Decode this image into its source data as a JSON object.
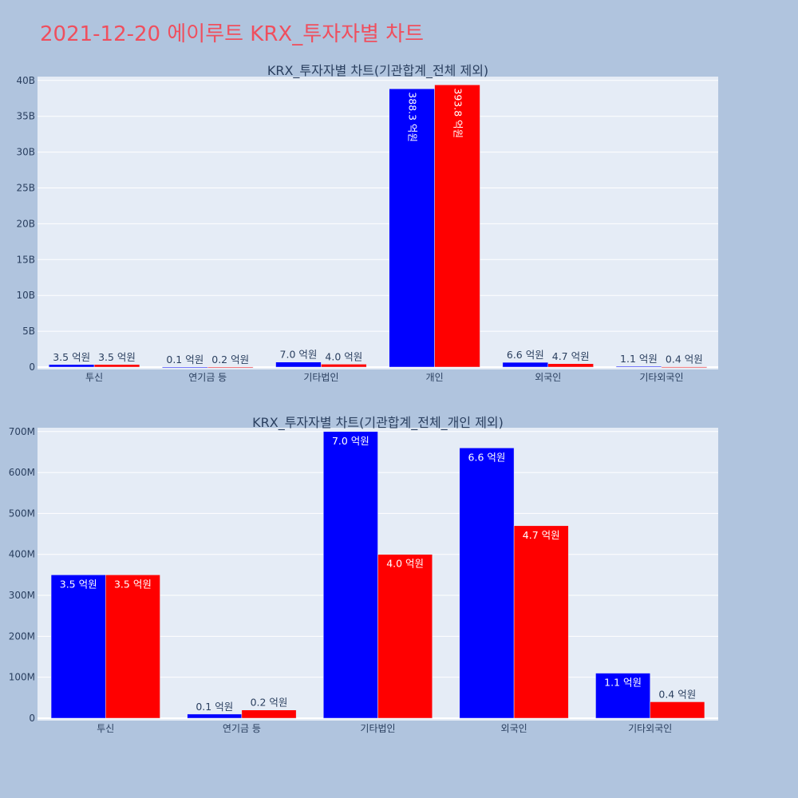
{
  "page": {
    "title": "2021-12-20 에이루트 KRX_투자자별 차트"
  },
  "chart_data": [
    {
      "type": "bar",
      "title": "KRX_투자자별 차트(기관합계_전체 제외)",
      "categories": [
        "투신",
        "연기금 등",
        "기타법인",
        "개인",
        "외국인",
        "기타외국인"
      ],
      "series": [
        {
          "color": "#0000ff",
          "values": [
            350000000,
            10000000,
            700000000,
            38830000000,
            660000000,
            110000000
          ],
          "labels": [
            "3.5 억원",
            "0.1 억원",
            "7.0 억원",
            "388.3 억원",
            "6.6 억원",
            "1.1 억원"
          ]
        },
        {
          "color": "#ff0000",
          "values": [
            350000000,
            20000000,
            400000000,
            39380000000,
            470000000,
            40000000
          ],
          "labels": [
            "3.5 억원",
            "0.2 억원",
            "4.0 억원",
            "393.8 억원",
            "4.7 억원",
            "0.4 억원"
          ]
        }
      ],
      "ylim": [
        0,
        40000000000
      ],
      "yticks": [
        0,
        5000000000,
        10000000000,
        15000000000,
        20000000000,
        25000000000,
        30000000000,
        35000000000,
        40000000000
      ],
      "ytick_labels": [
        "0",
        "5B",
        "10B",
        "15B",
        "20B",
        "25B",
        "30B",
        "35B",
        "40B"
      ],
      "grid": true
    },
    {
      "type": "bar",
      "title": "KRX_투자자별 차트(기관합계_전체_개인 제외)",
      "categories": [
        "투신",
        "연기금 등",
        "기타법인",
        "외국인",
        "기타외국인"
      ],
      "series": [
        {
          "color": "#0000ff",
          "values": [
            350000000,
            10000000,
            700000000,
            660000000,
            110000000
          ],
          "labels": [
            "3.5 억원",
            "0.1 억원",
            "7.0 억원",
            "6.6 억원",
            "1.1 억원"
          ]
        },
        {
          "color": "#ff0000",
          "values": [
            350000000,
            20000000,
            400000000,
            470000000,
            40000000
          ],
          "labels": [
            "3.5 억원",
            "0.2 억원",
            "4.0 억원",
            "4.7 억원",
            "0.4 억원"
          ]
        }
      ],
      "ylim": [
        0,
        700000000
      ],
      "yticks": [
        0,
        100000000,
        200000000,
        300000000,
        400000000,
        500000000,
        600000000,
        700000000
      ],
      "ytick_labels": [
        "0",
        "100M",
        "200M",
        "300M",
        "400M",
        "500M",
        "600M",
        "700M"
      ],
      "grid": true
    }
  ]
}
